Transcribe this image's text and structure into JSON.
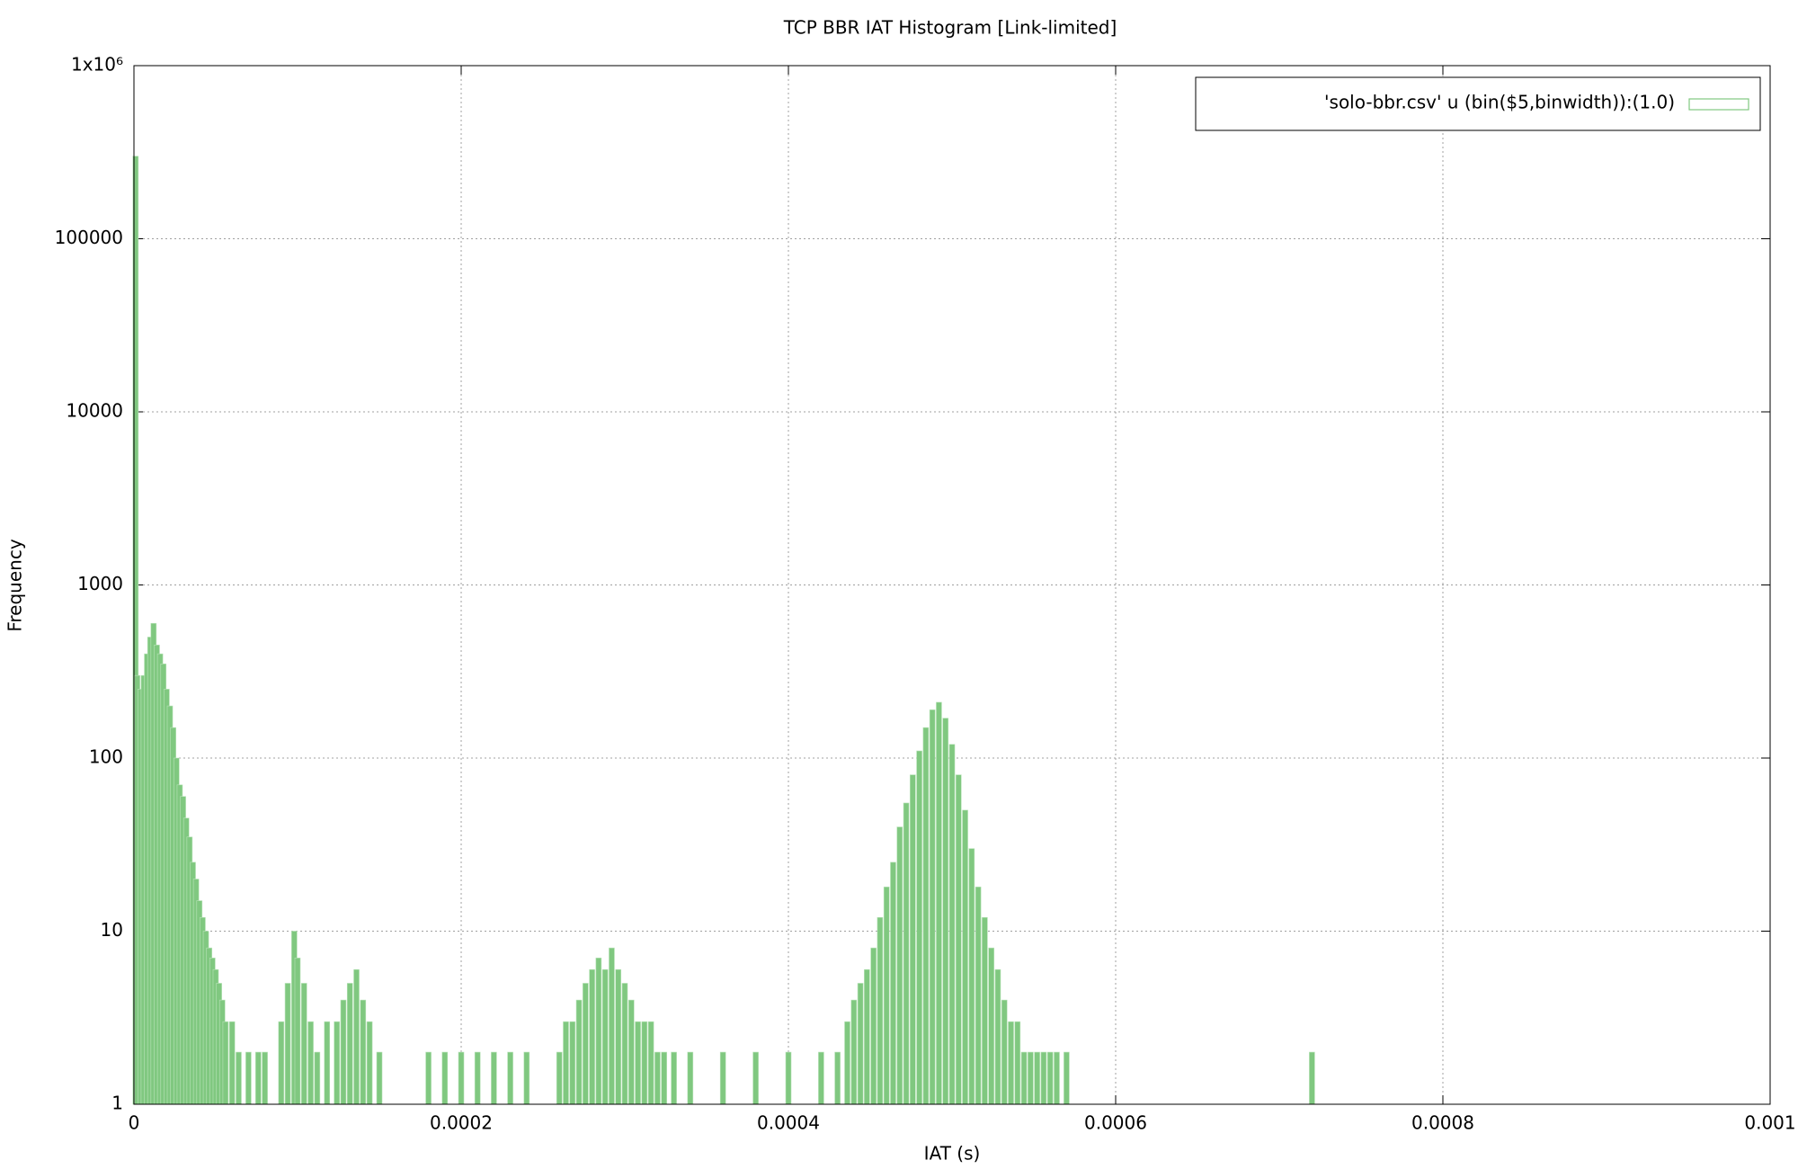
{
  "chart_data": {
    "type": "bar",
    "title": "TCP BBR IAT Histogram [Link-limited]",
    "x_label": "IAT (s)",
    "y_label": "Frequency",
    "x": [
      1e-06,
      2e-06,
      4e-06,
      6e-06,
      8e-06,
      1e-05,
      1.2e-05,
      1.4e-05,
      1.6e-05,
      1.8e-05,
      2e-05,
      2.2e-05,
      2.4e-05,
      2.6e-05,
      2.8e-05,
      3e-05,
      3.2e-05,
      3.4e-05,
      3.6e-05,
      3.8e-05,
      4e-05,
      4.2e-05,
      4.4e-05,
      4.6e-05,
      4.8e-05,
      5e-05,
      5.2e-05,
      5.4e-05,
      5.6e-05,
      6e-05,
      6.4e-05,
      7e-05,
      7.6e-05,
      8e-05,
      9e-05,
      9.4e-05,
      9.8e-05,
      0.0001,
      0.000104,
      0.000108,
      0.000112,
      0.000118,
      0.000124,
      0.000128,
      0.000132,
      0.000136,
      0.00014,
      0.000144,
      0.00015,
      0.00018,
      0.00019,
      0.0002,
      0.00021,
      0.00022,
      0.00023,
      0.00024,
      0.00026,
      0.000264,
      0.000268,
      0.000272,
      0.000276,
      0.00028,
      0.000284,
      0.000288,
      0.000292,
      0.000296,
      0.0003,
      0.000304,
      0.000308,
      0.000312,
      0.000316,
      0.00032,
      0.000324,
      0.00033,
      0.00034,
      0.00036,
      0.00038,
      0.0004,
      0.00042,
      0.00043,
      0.000436,
      0.00044,
      0.000444,
      0.000448,
      0.000452,
      0.000456,
      0.00046,
      0.000464,
      0.000468,
      0.000472,
      0.000476,
      0.00048,
      0.000484,
      0.000488,
      0.000492,
      0.000496,
      0.0005,
      0.000504,
      0.000508,
      0.000512,
      0.000516,
      0.00052,
      0.000524,
      0.000528,
      0.000532,
      0.000536,
      0.00054,
      0.000544,
      0.000548,
      0.000552,
      0.000556,
      0.00056,
      0.000564,
      0.00057,
      0.00072
    ],
    "series": [
      {
        "name": "'solo-bbr.csv' u (bin($5,binwidth)):(1.0)",
        "color": "#80c880",
        "values": [
          300000,
          300,
          250,
          300,
          400,
          500,
          600,
          450,
          400,
          350,
          250,
          200,
          150,
          100,
          70,
          60,
          45,
          35,
          25,
          20,
          15,
          12,
          10,
          8,
          7,
          6,
          5,
          4,
          3,
          3,
          2,
          2,
          2,
          2,
          3,
          5,
          10,
          7,
          5,
          3,
          2,
          3,
          3,
          4,
          5,
          6,
          4,
          3,
          2,
          2,
          2,
          2,
          2,
          2,
          2,
          2,
          2,
          3,
          3,
          4,
          5,
          6,
          7,
          6,
          8,
          6,
          5,
          4,
          3,
          3,
          3,
          2,
          2,
          2,
          2,
          2,
          2,
          2,
          2,
          2,
          3,
          4,
          5,
          6,
          8,
          12,
          18,
          25,
          40,
          55,
          80,
          110,
          150,
          190,
          210,
          170,
          120,
          80,
          50,
          30,
          18,
          12,
          8,
          6,
          4,
          3,
          3,
          2,
          2,
          2,
          2,
          2,
          2,
          2,
          2
        ]
      }
    ],
    "xlim": [
      0,
      0.001
    ],
    "xticks": [
      0,
      0.0002,
      0.0004,
      0.0006,
      0.0008,
      0.001
    ],
    "ylim": [
      1,
      1000000
    ],
    "yticks": [
      1,
      10,
      100,
      1000,
      10000,
      100000,
      {
        "value": 1000000,
        "label": "1x10⁶"
      }
    ],
    "y_scale": "log",
    "grid": true,
    "legend": "top-right"
  }
}
